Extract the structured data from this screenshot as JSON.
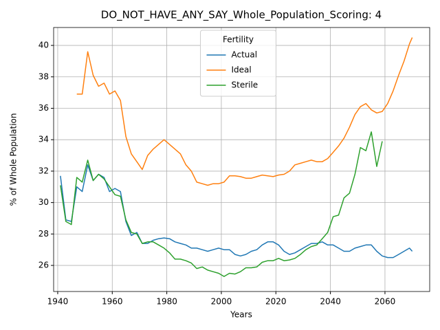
{
  "chart_data": {
    "type": "line",
    "title": "DO_NOT_HAVE_ANY_SAY_Whole_Population_Scoring: 4",
    "xlabel": "Years",
    "ylabel": "% of Whole Population",
    "legend_title": "Fertility",
    "legend": "upper center",
    "grid": true,
    "xlim": [
      1938.5,
      2076.4
    ],
    "ylim": [
      24.34,
      41.14
    ],
    "xticks": [
      1940,
      1960,
      1980,
      2000,
      2020,
      2040,
      2060
    ],
    "yticks": [
      26,
      28,
      30,
      32,
      34,
      36,
      38,
      40
    ],
    "x": [
      1941,
      1943,
      1945,
      1947,
      1949,
      1951,
      1953,
      1955,
      1957,
      1959,
      1961,
      1963,
      1965,
      1967,
      1969,
      1971,
      1973,
      1975,
      1977,
      1979,
      1981,
      1983,
      1985,
      1987,
      1989,
      1991,
      1993,
      1995,
      1997,
      1999,
      2001,
      2003,
      2005,
      2007,
      2009,
      2011,
      2013,
      2015,
      2017,
      2019,
      2021,
      2023,
      2025,
      2027,
      2029,
      2031,
      2033,
      2035,
      2037,
      2039,
      2041,
      2043,
      2045,
      2047,
      2049,
      2051,
      2053,
      2055,
      2057,
      2059,
      2061,
      2063,
      2065,
      2067,
      2069,
      2070
    ],
    "series": [
      {
        "name": "Actual",
        "color": "#1f77b4",
        "values": [
          31.7,
          28.9,
          28.8,
          31.0,
          30.7,
          32.4,
          31.4,
          31.8,
          31.6,
          30.7,
          30.9,
          30.7,
          28.8,
          27.9,
          28.1,
          27.4,
          27.4,
          27.6,
          27.7,
          27.75,
          27.7,
          27.5,
          27.4,
          27.3,
          27.1,
          27.1,
          27.0,
          26.9,
          27.0,
          27.1,
          27.0,
          27.0,
          26.7,
          26.6,
          26.7,
          26.9,
          27.0,
          27.3,
          27.5,
          27.5,
          27.3,
          26.9,
          26.7,
          26.8,
          27.0,
          27.2,
          27.4,
          27.4,
          27.5,
          27.3,
          27.3,
          27.1,
          26.9,
          26.9,
          27.1,
          27.2,
          27.3,
          27.3,
          26.9,
          26.6,
          26.5,
          26.5,
          26.7,
          26.9,
          27.1,
          26.9
        ]
      },
      {
        "name": "Ideal",
        "color": "#ff7f0e",
        "values": [
          null,
          null,
          null,
          36.9,
          36.9,
          39.6,
          38.1,
          37.4,
          37.6,
          36.9,
          37.1,
          36.5,
          34.2,
          33.1,
          32.6,
          32.1,
          33.0,
          33.4,
          33.7,
          34.0,
          33.7,
          33.4,
          33.1,
          32.4,
          32.0,
          31.3,
          31.2,
          31.1,
          31.2,
          31.2,
          31.3,
          31.7,
          31.7,
          31.65,
          31.55,
          31.55,
          31.65,
          31.75,
          31.7,
          31.65,
          31.75,
          31.8,
          32.0,
          32.4,
          32.5,
          32.6,
          32.7,
          32.6,
          32.6,
          32.8,
          33.2,
          33.6,
          34.1,
          34.8,
          35.6,
          36.1,
          36.3,
          35.9,
          35.7,
          35.8,
          36.3,
          37.1,
          38.1,
          39.0,
          40.1,
          40.5
        ]
      },
      {
        "name": "Sterile",
        "color": "#2ca02c",
        "values": [
          31.1,
          28.8,
          28.6,
          31.6,
          31.3,
          32.7,
          31.4,
          31.8,
          31.5,
          31.0,
          30.5,
          30.4,
          28.9,
          28.1,
          28.0,
          27.4,
          27.5,
          27.5,
          27.3,
          27.1,
          26.8,
          26.4,
          26.4,
          26.3,
          26.15,
          25.8,
          25.9,
          25.7,
          25.6,
          25.5,
          25.3,
          25.5,
          25.45,
          25.6,
          25.85,
          25.85,
          25.9,
          26.2,
          26.3,
          26.3,
          26.45,
          26.3,
          26.35,
          26.45,
          26.7,
          27.0,
          27.2,
          27.3,
          27.7,
          28.1,
          29.1,
          29.2,
          30.3,
          30.6,
          31.8,
          33.5,
          33.3,
          34.5,
          32.3,
          33.9,
          null,
          null,
          null,
          null,
          null,
          null
        ]
      }
    ]
  }
}
